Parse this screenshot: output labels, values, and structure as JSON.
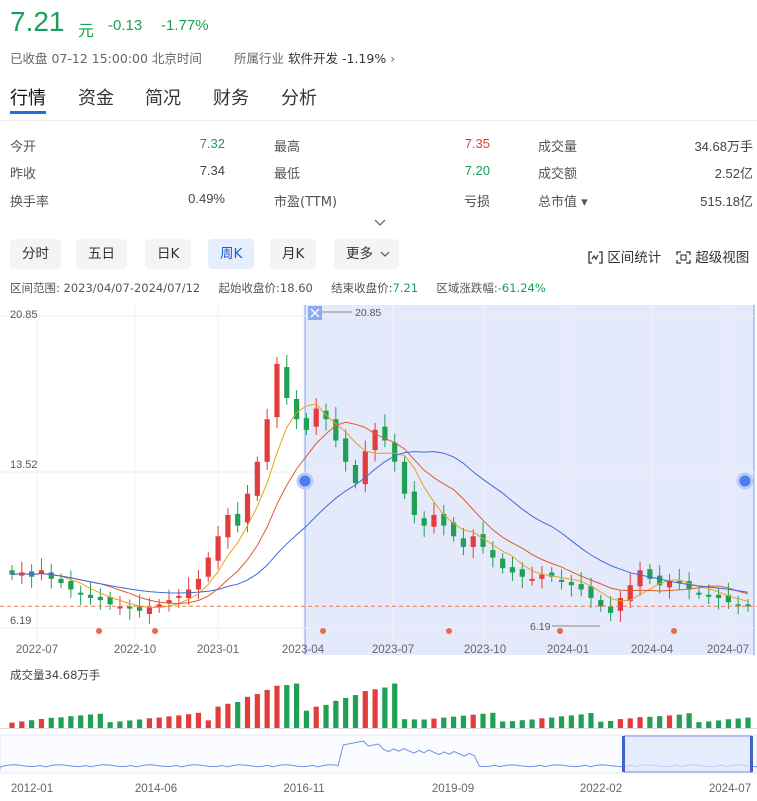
{
  "quote": {
    "price": "7.21",
    "unit": "元",
    "change": "-0.13",
    "change_pct": "-1.77%",
    "status": "已收盘 07-12 15:00:00 北京时间",
    "industry_label": "所属行业",
    "industry_name": "软件开发",
    "industry_pct": "-1.19%",
    "industry_arrow": "›"
  },
  "tabs": [
    {
      "label": "行情"
    },
    {
      "label": "资金"
    },
    {
      "label": "简况"
    },
    {
      "label": "财务"
    },
    {
      "label": "分析"
    }
  ],
  "stats": [
    [
      {
        "label": "今开",
        "value": "7.32",
        "color": "green"
      },
      {
        "label": "最高",
        "value": "7.35",
        "color": "red"
      },
      {
        "label": "成交量",
        "value": "34.68万手",
        "color": ""
      }
    ],
    [
      {
        "label": "昨收",
        "value": "7.34",
        "color": ""
      },
      {
        "label": "最低",
        "value": "7.20",
        "color": "green"
      },
      {
        "label": "成交额",
        "value": "2.52亿",
        "color": ""
      }
    ],
    [
      {
        "label": "换手率",
        "value": "0.49%",
        "color": ""
      },
      {
        "label": "市盈(TTM)",
        "value": "亏损",
        "color": ""
      },
      {
        "label": "总市值 ▾",
        "value": "515.18亿",
        "color": ""
      }
    ]
  ],
  "expand_icon": "chevron-down-icon",
  "periods": [
    {
      "label": "分时"
    },
    {
      "label": "五日"
    },
    {
      "label": "日K"
    },
    {
      "label": "周K"
    },
    {
      "label": "月K"
    },
    {
      "label": "更多"
    }
  ],
  "active_period": "周K",
  "tools": {
    "range_stats": "区间统计",
    "super_view": "超级视图"
  },
  "range": {
    "label": "区间范围:",
    "dates": "2023/04/07-2024/07/12",
    "start_label": "起始收盘价:",
    "start": "18.60",
    "end_label": "结束收盘价:",
    "end": "7.21",
    "chg_label": "区域涨跌幅:",
    "chg": "-61.24%"
  },
  "chart_data": {
    "type": "candlestick",
    "y_ticks": [
      "20.85",
      "13.52",
      "6.19"
    ],
    "ylim": [
      6.19,
      20.85
    ],
    "x_ticks": [
      "2022-07",
      "2022-10",
      "2023-01",
      "2023-04",
      "2023-07",
      "2023-10",
      "2024-01",
      "2024-04",
      "2024-07"
    ],
    "max_marker": "20.85",
    "min_marker": "6.19",
    "close_series": [
      8.7,
      8.8,
      8.6,
      8.9,
      8.5,
      8.3,
      8.0,
      7.8,
      7.6,
      7.5,
      7.3,
      7.2,
      7.1,
      7.0,
      7.2,
      7.3,
      7.5,
      7.7,
      8.0,
      8.5,
      9.5,
      10.5,
      11.5,
      11.0,
      12.5,
      14.0,
      16.0,
      18.6,
      17.0,
      16.0,
      15.5,
      16.5,
      16.0,
      15.0,
      14.0,
      13.0,
      14.5,
      15.5,
      15.0,
      14.0,
      12.5,
      11.5,
      11.0,
      11.5,
      11.0,
      10.5,
      10.0,
      10.5,
      10.0,
      9.5,
      9.0,
      8.8,
      8.6,
      8.5,
      8.7,
      8.6,
      8.4,
      8.2,
      8.0,
      7.6,
      7.2,
      6.9,
      7.6,
      8.2,
      8.9,
      8.5,
      8.2,
      8.4,
      8.3,
      8.0,
      7.8,
      7.7,
      7.6,
      7.4,
      7.3,
      7.21
    ],
    "volume_label": "成交量34.68万手",
    "overview_ticks": [
      "2012-01",
      "2014-06",
      "2016-11",
      "2019-09",
      "2022-02",
      "2024-07"
    ]
  }
}
